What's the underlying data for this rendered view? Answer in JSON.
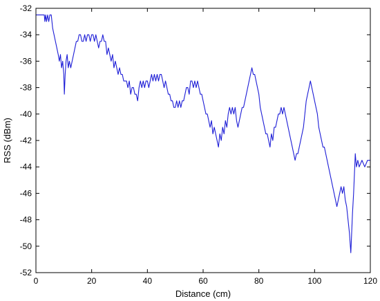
{
  "chart_data": {
    "type": "line",
    "title": "",
    "xlabel": "Distance (cm)",
    "ylabel": "RSS (dBm)",
    "xlim": [
      0,
      120
    ],
    "ylim": [
      -52,
      -32
    ],
    "x_ticks": [
      0,
      20,
      40,
      60,
      80,
      100,
      120
    ],
    "x_tick_labels": [
      "0",
      "20",
      "40",
      "60",
      "80",
      "100",
      "120"
    ],
    "y_ticks": [
      -32,
      -34,
      -36,
      -38,
      -40,
      -42,
      -44,
      -46,
      -48,
      -50,
      -52
    ],
    "y_tick_labels": [
      "-32",
      "-34",
      "-36",
      "-38",
      "-40",
      "-42",
      "-44",
      "-46",
      "-48",
      "-50",
      "-52"
    ],
    "grid": false,
    "legend": "none",
    "line_color": "#1c1cd6",
    "series": [
      {
        "x": [
          0,
          1,
          2,
          3,
          3.2,
          3.5,
          3.8,
          4.2,
          4.6,
          5,
          5.5,
          6,
          6.5,
          7,
          7.5,
          8,
          8.4,
          8.8,
          9.2,
          9.6,
          10,
          10.2,
          10.5,
          10.8,
          11.2,
          11.6,
          12,
          12.5,
          13,
          13.5,
          14,
          14.5,
          15,
          15.5,
          16,
          16.5,
          17,
          17.5,
          18,
          18.5,
          19,
          19.5,
          20,
          20.5,
          21,
          21.5,
          22,
          22.5,
          23,
          23.5,
          24,
          24.5,
          25,
          25.5,
          26,
          26.5,
          27,
          27.5,
          28,
          28.5,
          29,
          29.5,
          30,
          30.5,
          31,
          31.5,
          32,
          32.5,
          33,
          33.5,
          34,
          34.5,
          35,
          35.5,
          36,
          36.5,
          37,
          37.5,
          38,
          38.5,
          39,
          39.5,
          40,
          40.5,
          41,
          41.5,
          42,
          42.5,
          43,
          43.5,
          44,
          44.5,
          45,
          45.5,
          46,
          46.5,
          47,
          47.5,
          48,
          48.5,
          49,
          49.5,
          50,
          50.5,
          51,
          51.5,
          52,
          52.5,
          53,
          53.5,
          54,
          54.5,
          55,
          55.5,
          56,
          56.5,
          57,
          57.5,
          58,
          58.5,
          59,
          59.5,
          60,
          60.5,
          61,
          61.5,
          62,
          62.5,
          63,
          63.5,
          64,
          64.5,
          65,
          65.5,
          66,
          66.5,
          67,
          67.5,
          68,
          68.5,
          69,
          69.5,
          70,
          70.5,
          71,
          71.5,
          72,
          72.5,
          73,
          73.5,
          74,
          74.5,
          75,
          75.5,
          76,
          76.5,
          77,
          77.5,
          78,
          78.5,
          79,
          79.5,
          80,
          80.5,
          81,
          81.5,
          82,
          82.5,
          83,
          83.5,
          84,
          84.5,
          85,
          85.5,
          86,
          86.5,
          87,
          87.5,
          88,
          88.5,
          89,
          89.5,
          90,
          90.5,
          91,
          91.5,
          92,
          92.5,
          93,
          93.5,
          94,
          94.5,
          95,
          95.5,
          96,
          96.5,
          97,
          97.5,
          98,
          98.5,
          99,
          99.5,
          100,
          100.5,
          101,
          101.5,
          102,
          102.5,
          103,
          103.5,
          104,
          104.5,
          105,
          105.5,
          106,
          106.5,
          107,
          107.5,
          108,
          108.5,
          109,
          109.5,
          110,
          110.5,
          111,
          111.5,
          112,
          112.5,
          113,
          113.3,
          113.6,
          114,
          114.3,
          114.6,
          115,
          115.5,
          116,
          117,
          118,
          119,
          120
        ],
        "y": [
          -32.5,
          -32.5,
          -32.5,
          -32.5,
          -33,
          -32.5,
          -33,
          -32.5,
          -33,
          -32.5,
          -32.5,
          -33.5,
          -34,
          -34.5,
          -35,
          -35.5,
          -36,
          -35.5,
          -36.5,
          -36,
          -37,
          -38.5,
          -37,
          -36,
          -35.5,
          -36.5,
          -36,
          -36.5,
          -36,
          -35.5,
          -35,
          -34.5,
          -34.5,
          -34,
          -34,
          -34.5,
          -34.5,
          -34,
          -34.5,
          -34,
          -34,
          -34.5,
          -34,
          -34,
          -34.5,
          -34,
          -34.5,
          -35,
          -34.5,
          -34.5,
          -34,
          -34.5,
          -34.5,
          -35.5,
          -35,
          -35.5,
          -36,
          -35.5,
          -36.5,
          -36,
          -36.5,
          -37,
          -36.5,
          -37,
          -37,
          -37.5,
          -37.5,
          -37.5,
          -38,
          -37.5,
          -38.5,
          -38,
          -38,
          -38.5,
          -38.5,
          -39,
          -38,
          -37.5,
          -38,
          -37.5,
          -38,
          -37.5,
          -37.5,
          -38,
          -37.5,
          -37,
          -37.5,
          -37,
          -37.5,
          -37,
          -37.5,
          -37,
          -37,
          -37.5,
          -38,
          -37.5,
          -38,
          -38.5,
          -38.5,
          -39,
          -39,
          -39.5,
          -39.5,
          -39,
          -39.5,
          -39,
          -39.5,
          -39,
          -39,
          -38.5,
          -38,
          -38,
          -38.5,
          -37.5,
          -37.5,
          -38,
          -37.5,
          -38,
          -37.5,
          -38,
          -38.5,
          -38.5,
          -39,
          -39.5,
          -40,
          -40,
          -40.5,
          -41,
          -40.5,
          -41.5,
          -41,
          -41.5,
          -42,
          -42.5,
          -41.5,
          -42,
          -41,
          -41.5,
          -40.5,
          -41,
          -40,
          -39.5,
          -40,
          -39.5,
          -40,
          -39.5,
          -40.5,
          -41,
          -40.5,
          -40,
          -39.5,
          -39.5,
          -39,
          -38.5,
          -38,
          -37.5,
          -37,
          -36.5,
          -37,
          -37,
          -37.5,
          -38,
          -38.5,
          -39.5,
          -40,
          -40.5,
          -41,
          -41.5,
          -41.5,
          -42,
          -42.5,
          -41.5,
          -42,
          -41,
          -41,
          -40.5,
          -40,
          -40,
          -39.5,
          -40,
          -39.5,
          -40,
          -40.5,
          -41,
          -41.5,
          -42,
          -42.5,
          -43,
          -43.5,
          -43,
          -43,
          -42.5,
          -42,
          -41.5,
          -41,
          -40,
          -39,
          -38.5,
          -38,
          -37.5,
          -38,
          -38.5,
          -39,
          -39.5,
          -40,
          -41,
          -41.5,
          -42,
          -42.5,
          -42.5,
          -43,
          -43.5,
          -44,
          -44.5,
          -45,
          -45.5,
          -46,
          -46.5,
          -47,
          -46.5,
          -46,
          -45.5,
          -46,
          -45.5,
          -46.5,
          -47,
          -48,
          -49,
          -50.5,
          -49,
          -47.5,
          -46,
          -44.5,
          -43,
          -44,
          -43.5,
          -44,
          -43.5,
          -44,
          -43.5,
          -43.5
        ]
      }
    ]
  }
}
